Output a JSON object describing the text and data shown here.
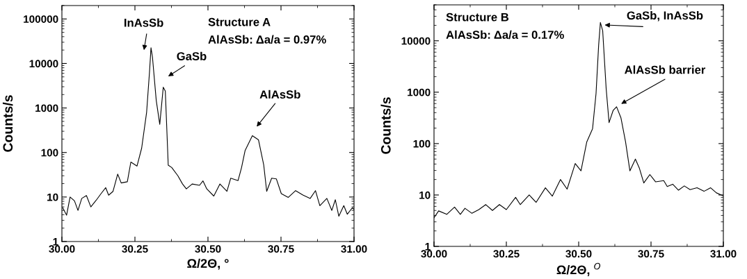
{
  "chart_data": [
    {
      "type": "line",
      "xlabel": "Ω/2Θ, °",
      "ylabel": "Counts/s",
      "log": "y",
      "grid": false,
      "legend": false,
      "marker": "none",
      "line_style": "solid",
      "xlim": [
        30,
        31
      ],
      "xticks": [
        {
          "value": 30,
          "label": "30.00"
        },
        {
          "value": 30.25,
          "label": "30.25"
        },
        {
          "value": 30.5,
          "label": "30.50"
        },
        {
          "value": 30.75,
          "label": "30.75"
        },
        {
          "value": 31,
          "label": "31.00"
        }
      ],
      "ylim": [
        1,
        200000
      ],
      "yticks": [
        1,
        10,
        100,
        1000,
        10000,
        100000
      ],
      "series": [
        {
          "color": "#000000",
          "x": [
            30.003,
            30.016,
            30.028,
            30.043,
            30.055,
            30.068,
            30.084,
            30.099,
            30.117,
            30.134,
            30.15,
            30.16,
            30.175,
            30.191,
            30.203,
            30.224,
            30.236,
            30.257,
            30.273,
            30.29,
            30.3,
            30.305,
            30.31,
            30.323,
            30.335,
            30.347,
            30.354,
            30.364,
            30.376,
            30.397,
            30.413,
            30.426,
            30.446,
            30.471,
            30.483,
            30.496,
            30.52,
            30.541,
            30.565,
            30.578,
            30.603,
            30.615,
            30.627,
            30.652,
            30.673,
            30.691,
            30.701,
            30.718,
            30.734,
            30.751,
            30.775,
            30.8,
            30.825,
            30.85,
            30.868,
            30.883,
            30.907,
            30.924,
            30.936,
            30.948,
            30.965,
            30.977,
            30.994,
            31.0
          ],
          "values": [
            5.7,
            3.9,
            10,
            8.2,
            5,
            9.3,
            10.8,
            6,
            8.4,
            11.9,
            16.2,
            11,
            13.4,
            32.7,
            20.7,
            22,
            61,
            49.5,
            125,
            800,
            6600,
            22500,
            13900,
            1470,
            430,
            2930,
            2400,
            52,
            46,
            30,
            19.6,
            15.2,
            19.6,
            18.3,
            23,
            15.2,
            10.5,
            19.6,
            13.4,
            26.5,
            23.4,
            46,
            110,
            238,
            192,
            52,
            13.4,
            26.5,
            25.6,
            11.9,
            9.8,
            13.9,
            11.1,
            9.3,
            13.9,
            6.4,
            9.3,
            5,
            8.7,
            3.7,
            6.4,
            4.1,
            5.7,
            5.3
          ]
        }
      ],
      "annotations": [
        "InAsSb",
        "GaSb",
        "AlAsSb",
        "Structure A",
        "AlAsSb: Δa/a = 0.97%"
      ]
    },
    {
      "type": "line",
      "xlabel": "Ω/2Θ, $^{O}$",
      "ylabel": "Counts/s",
      "log": "y",
      "grid": false,
      "legend": false,
      "marker": "none",
      "line_style": "solid",
      "xlim": [
        30,
        31
      ],
      "xticks": [
        {
          "value": 30,
          "label": "30.00"
        },
        {
          "value": 30.25,
          "label": "30.25"
        },
        {
          "value": 30.5,
          "label": "30.50"
        },
        {
          "value": 30.75,
          "label": "30.75"
        },
        {
          "value": 31,
          "label": "31.00"
        }
      ],
      "ylim": [
        1,
        50000
      ],
      "yticks": [
        1,
        10,
        100,
        1000,
        10000
      ],
      "series": [
        {
          "color": "#000000",
          "x": [
            30.0,
            30.016,
            30.044,
            30.071,
            30.091,
            30.107,
            30.131,
            30.155,
            30.179,
            30.202,
            30.226,
            30.25,
            30.282,
            30.298,
            30.329,
            30.353,
            30.385,
            30.409,
            30.437,
            30.46,
            30.488,
            30.508,
            30.528,
            30.548,
            30.56,
            30.569,
            30.575,
            30.583,
            30.595,
            30.605,
            30.619,
            30.631,
            30.646,
            30.662,
            30.677,
            30.696,
            30.71,
            30.725,
            30.746,
            30.766,
            30.794,
            30.806,
            30.825,
            30.845,
            30.865,
            30.885,
            30.909,
            30.933,
            30.956,
            30.976,
            31.0
          ],
          "values": [
            3.6,
            4.9,
            4.2,
            5.8,
            4.2,
            5.5,
            4.4,
            5.2,
            6.5,
            5.0,
            6.5,
            5.2,
            9.0,
            6.5,
            10,
            7.2,
            13.8,
            9.5,
            20,
            13,
            41,
            29.5,
            108,
            195,
            940,
            8200,
            22700,
            15600,
            1170,
            256,
            440,
            520,
            318,
            108,
            29.5,
            50,
            33,
            17.1,
            25,
            18,
            19,
            14.6,
            16.2,
            12.4,
            15,
            12.7,
            13.8,
            11.8,
            13.8,
            11,
            9.6
          ]
        }
      ],
      "annotations": [
        "GaSb, InAsSb",
        "AlAsSb barrier",
        "Structure B",
        "AlAsSb: Δa/a = 0.17%"
      ]
    }
  ]
}
